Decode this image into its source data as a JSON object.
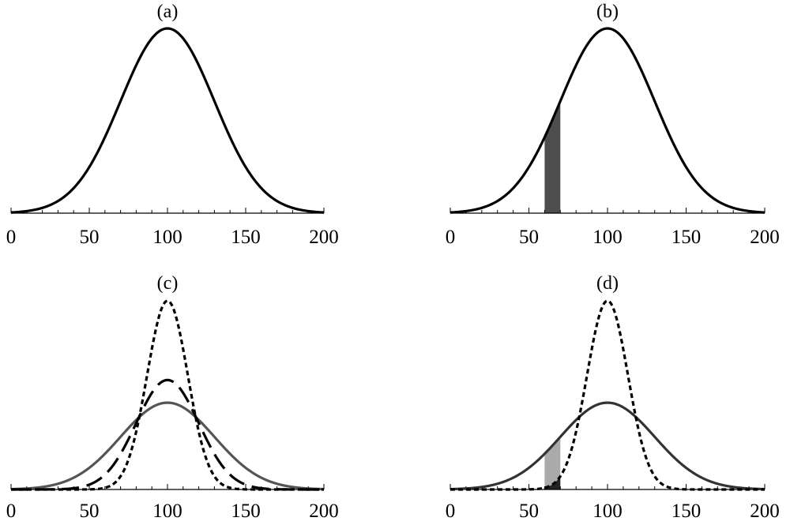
{
  "chart_data": [
    {
      "type": "line",
      "title": "(a)",
      "xlim": [
        0,
        200
      ],
      "x_ticks": [
        0,
        50,
        100,
        150,
        200
      ],
      "x_tick_labels": [
        "0",
        "50",
        "100",
        "150",
        "200"
      ],
      "ylim": [
        0,
        1.0
      ],
      "y_axis_shown": false,
      "grid": false,
      "series": [
        {
          "style": "solid",
          "color": "#000000",
          "mean": 100,
          "sd": 30,
          "peak": 1.0
        }
      ],
      "shaded": []
    },
    {
      "type": "line",
      "title": "(b)",
      "xlim": [
        0,
        200
      ],
      "x_ticks": [
        0,
        50,
        100,
        150,
        200
      ],
      "x_tick_labels": [
        "0",
        "50",
        "100",
        "150",
        "200"
      ],
      "ylim": [
        0,
        1.0
      ],
      "y_axis_shown": false,
      "grid": false,
      "series": [
        {
          "style": "solid",
          "color": "#000000",
          "mean": 100,
          "sd": 30,
          "peak": 1.0
        }
      ],
      "shaded": [
        {
          "x_from": 60,
          "x_to": 70,
          "y_from": 0,
          "y_to": "curve",
          "curve": 0,
          "color": "#4d4d4d"
        }
      ]
    },
    {
      "type": "line",
      "title": "(c)",
      "xlim": [
        0,
        200
      ],
      "x_ticks": [
        0,
        50,
        100,
        150,
        200
      ],
      "x_tick_labels": [
        "0",
        "50",
        "100",
        "150",
        "200"
      ],
      "ylim": [
        0,
        1.0
      ],
      "y_axis_shown": false,
      "grid": false,
      "series": [
        {
          "style": "solid",
          "color": "#555555",
          "mean": 100,
          "sd": 30,
          "peak": 0.46
        },
        {
          "style": "dashed",
          "color": "#000000",
          "mean": 100,
          "sd": 20,
          "peak": 0.58
        },
        {
          "style": "dotted",
          "color": "#000000",
          "mean": 100,
          "sd": 13,
          "peak": 1.0
        }
      ],
      "shaded": []
    },
    {
      "type": "line",
      "title": "(d)",
      "xlim": [
        0,
        200
      ],
      "x_ticks": [
        0,
        50,
        100,
        150,
        200
      ],
      "x_tick_labels": [
        "0",
        "50",
        "100",
        "150",
        "200"
      ],
      "ylim": [
        0,
        1.0
      ],
      "y_axis_shown": false,
      "grid": false,
      "series": [
        {
          "style": "solid",
          "color": "#333333",
          "mean": 100,
          "sd": 30,
          "peak": 0.46
        },
        {
          "style": "dotted",
          "color": "#000000",
          "mean": 100,
          "sd": 13,
          "peak": 1.0
        }
      ],
      "shaded": [
        {
          "x_from": 60,
          "x_to": 70,
          "y_from": "curve",
          "curve_from": 1,
          "y_to": "curve",
          "curve": 0,
          "color": "#aaaaaa"
        },
        {
          "x_from": 60,
          "x_to": 70,
          "y_from": 0,
          "y_to": "curve",
          "curve": 1,
          "color": "#222222"
        }
      ]
    }
  ]
}
